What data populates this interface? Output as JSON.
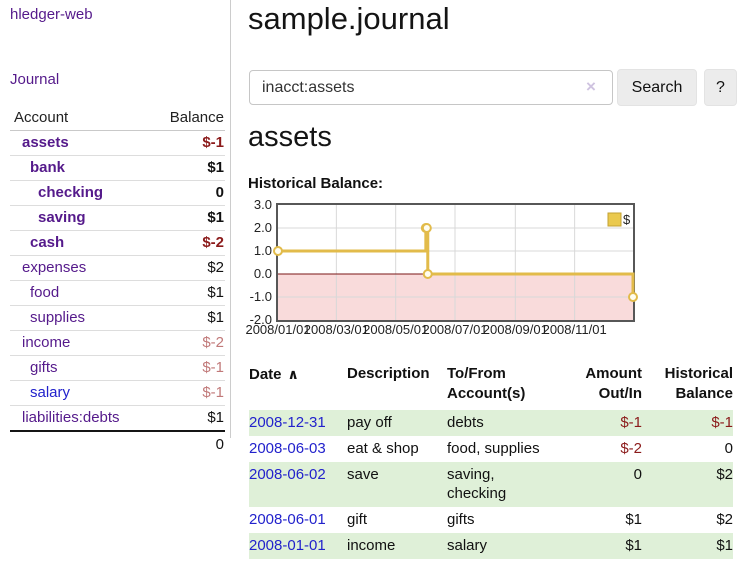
{
  "app": {
    "brand": "hledger-web",
    "nav_journal": "Journal"
  },
  "header": {
    "title": "sample.journal"
  },
  "search": {
    "value": "inacct:assets",
    "clear_icon": "×",
    "button": "Search",
    "help_button": "?"
  },
  "account_page": {
    "title": "assets",
    "chart_label": "Historical Balance:"
  },
  "sidebar": {
    "header": {
      "account": "Account",
      "balance": "Balance"
    },
    "accounts": [
      {
        "name": "assets",
        "depth": 1,
        "bold": true,
        "link": "purple",
        "balance": "$-1",
        "tone": "negd"
      },
      {
        "name": "bank",
        "depth": 2,
        "bold": true,
        "link": "purple",
        "balance": "$1",
        "tone": "pos"
      },
      {
        "name": "checking",
        "depth": 3,
        "bold": true,
        "link": "purple",
        "balance": "0",
        "tone": "pos"
      },
      {
        "name": "saving",
        "depth": 3,
        "bold": true,
        "link": "purple",
        "balance": "$1",
        "tone": "pos"
      },
      {
        "name": "cash",
        "depth": 2,
        "bold": true,
        "link": "purple",
        "balance": "$-2",
        "tone": "negd"
      },
      {
        "name": "expenses",
        "depth": 1,
        "bold": false,
        "link": "purple",
        "balance": "$2",
        "tone": "pos"
      },
      {
        "name": "food",
        "depth": 2,
        "bold": false,
        "link": "purple",
        "balance": "$1",
        "tone": "pos"
      },
      {
        "name": "supplies",
        "depth": 2,
        "bold": false,
        "link": "purple",
        "balance": "$1",
        "tone": "pos"
      },
      {
        "name": "income",
        "depth": 1,
        "bold": false,
        "link": "purple",
        "balance": "$-2",
        "tone": "negl"
      },
      {
        "name": "gifts",
        "depth": 2,
        "bold": false,
        "link": "purple",
        "balance": "$-1",
        "tone": "negl"
      },
      {
        "name": "salary",
        "depth": 2,
        "bold": false,
        "link": "blue",
        "balance": "$-1",
        "tone": "negl"
      },
      {
        "name": "liabilities:debts",
        "depth": 1,
        "bold": false,
        "link": "purple",
        "balance": "$1",
        "tone": "pos"
      }
    ],
    "total": "0"
  },
  "chart_data": {
    "type": "line",
    "step": true,
    "title": "Historical Balance:",
    "series": [
      {
        "name": "$",
        "points": [
          [
            "2008-01-01",
            1
          ],
          [
            "2008-06-01",
            2
          ],
          [
            "2008-06-02",
            2
          ],
          [
            "2008-06-03",
            0
          ],
          [
            "2008-12-31",
            -1
          ]
        ]
      }
    ],
    "x_range": [
      "2008-01-01",
      "2008-12-31"
    ],
    "ylim": [
      -2,
      3
    ],
    "yticks": [
      3.0,
      2.0,
      1.0,
      0.0,
      -1.0,
      -2.0
    ],
    "xtick_labels": [
      "2008/01/01",
      "2008/03/01",
      "2008/05/01",
      "2008/07/01",
      "2008/09/01",
      "2008/11/01"
    ],
    "xtick_days": [
      0,
      60,
      121,
      182,
      244,
      305
    ],
    "legend": {
      "label": "$",
      "position": "top-right"
    },
    "grid": true,
    "colors": {
      "series": "#e2bb4a",
      "marker_fill": "#fffdf0",
      "negative_region": "#f9dbdb",
      "zero_line": "#7a1515",
      "grid": "#d8d8d8",
      "border": "#575757",
      "legend_fill": "#eac94e",
      "legend_stroke": "#c3a133"
    }
  },
  "register": {
    "sort_icon": "∧",
    "columns": [
      {
        "lines": [
          "Date"
        ],
        "align": "left",
        "sorted": true
      },
      {
        "lines": [
          "Description"
        ],
        "align": "left"
      },
      {
        "lines": [
          "To/From",
          "Account(s)"
        ],
        "align": "left"
      },
      {
        "lines": [
          "Amount",
          "Out/In"
        ],
        "align": "right"
      },
      {
        "lines": [
          "Historical",
          "Balance"
        ],
        "align": "right"
      }
    ],
    "rows": [
      {
        "date": "2008-12-31",
        "description": "pay off",
        "accounts": "debts",
        "amount": "$-1",
        "amount_neg": true,
        "balance": "$-1",
        "balance_neg": true
      },
      {
        "date": "2008-06-03",
        "description": "eat & shop",
        "accounts": "food, supplies",
        "amount": "$-2",
        "amount_neg": true,
        "balance": "0",
        "balance_neg": false
      },
      {
        "date": "2008-06-02",
        "description": "save",
        "accounts": "saving,\nchecking",
        "amount": "0",
        "amount_neg": false,
        "balance": "$2",
        "balance_neg": false
      },
      {
        "date": "2008-06-01",
        "description": "gift",
        "accounts": "gifts",
        "amount": "$1",
        "amount_neg": false,
        "balance": "$2",
        "balance_neg": false
      },
      {
        "date": "2008-01-01",
        "description": "income",
        "accounts": "salary",
        "amount": "$1",
        "amount_neg": false,
        "balance": "$1",
        "balance_neg": false
      }
    ]
  }
}
